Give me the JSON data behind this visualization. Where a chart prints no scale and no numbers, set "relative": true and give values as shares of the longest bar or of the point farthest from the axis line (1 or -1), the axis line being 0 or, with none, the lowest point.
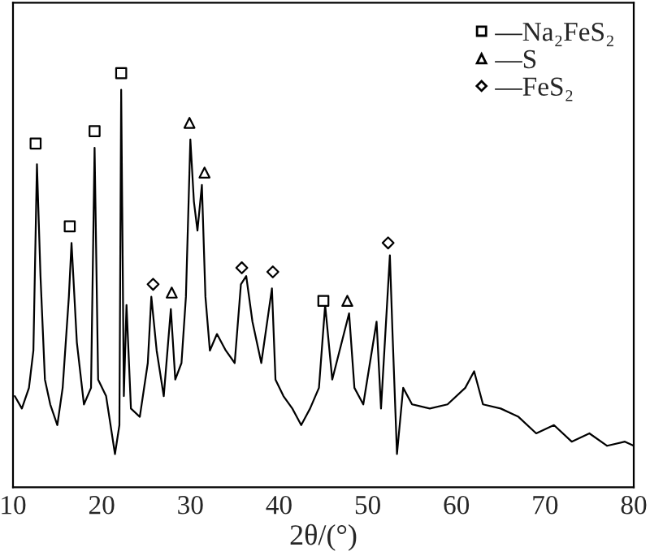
{
  "chart_data": {
    "type": "line",
    "xlabel": "2θ/(°)",
    "relative": true,
    "xlim": [
      10,
      80
    ],
    "xticks": [
      10,
      20,
      30,
      40,
      50,
      60,
      70,
      80
    ],
    "grid": false,
    "legend": "top right",
    "tick_labels": "x",
    "series": [
      {
        "color": "#000000",
        "marker": "none",
        "x": [
          10.2,
          11.0,
          11.8,
          12.3,
          12.7,
          13.1,
          13.6,
          14.2,
          15.0,
          15.6,
          16.3,
          16.6,
          17.2,
          18.0,
          18.8,
          19.2,
          19.6,
          20.5,
          21.5,
          22.0,
          22.2,
          22.5,
          22.8,
          23.3,
          24.3,
          25.2,
          25.6,
          26.2,
          27.0,
          27.8,
          28.3,
          29.0,
          29.5,
          30.0,
          30.4,
          30.8,
          31.3,
          31.7,
          32.2,
          33.0,
          34.0,
          35.0,
          35.7,
          36.3,
          37.0,
          38.0,
          39.2,
          39.6,
          40.5,
          41.5,
          42.5,
          43.5,
          44.5,
          45.2,
          46.0,
          47.9,
          48.5,
          49.5,
          51.0,
          51.5,
          52.5,
          52.8,
          53.3,
          54,
          55,
          57,
          59,
          61,
          62,
          63,
          65,
          67,
          69,
          71,
          73,
          75,
          77,
          79,
          80
        ],
        "values": [
          0.22,
          0.19,
          0.24,
          0.33,
          0.78,
          0.51,
          0.26,
          0.2,
          0.15,
          0.24,
          0.46,
          0.59,
          0.35,
          0.2,
          0.24,
          0.82,
          0.26,
          0.22,
          0.08,
          0.15,
          0.96,
          0.22,
          0.44,
          0.19,
          0.17,
          0.3,
          0.46,
          0.33,
          0.22,
          0.43,
          0.26,
          0.3,
          0.46,
          0.84,
          0.69,
          0.62,
          0.73,
          0.46,
          0.33,
          0.37,
          0.33,
          0.3,
          0.49,
          0.51,
          0.4,
          0.3,
          0.48,
          0.26,
          0.22,
          0.19,
          0.15,
          0.19,
          0.24,
          0.44,
          0.26,
          0.42,
          0.24,
          0.2,
          0.4,
          0.19,
          0.56,
          0.37,
          0.08,
          0.24,
          0.2,
          0.19,
          0.2,
          0.24,
          0.28,
          0.2,
          0.19,
          0.17,
          0.13,
          0.15,
          0.11,
          0.13,
          0.1,
          0.11,
          0.1
        ]
      },
      {
        "type": "scatter",
        "name": "—Na₂FeS₂",
        "color": "#000000",
        "marker": "square",
        "x": [
          12.55,
          16.4,
          19.2,
          22.2,
          45.0
        ],
        "values": [
          0.83,
          0.63,
          0.86,
          1.0,
          0.45
        ]
      },
      {
        "type": "scatter",
        "name": "—S",
        "color": "#000000",
        "marker": "triangle",
        "x": [
          27.9,
          29.9,
          31.6,
          47.7
        ],
        "values": [
          0.47,
          0.88,
          0.76,
          0.45
        ]
      },
      {
        "type": "scatter",
        "name": "—FeS₂",
        "color": "#000000",
        "marker": "diamond",
        "x": [
          25.8,
          35.8,
          39.3,
          52.3
        ],
        "values": [
          0.49,
          0.53,
          0.52,
          0.59
        ]
      }
    ]
  }
}
